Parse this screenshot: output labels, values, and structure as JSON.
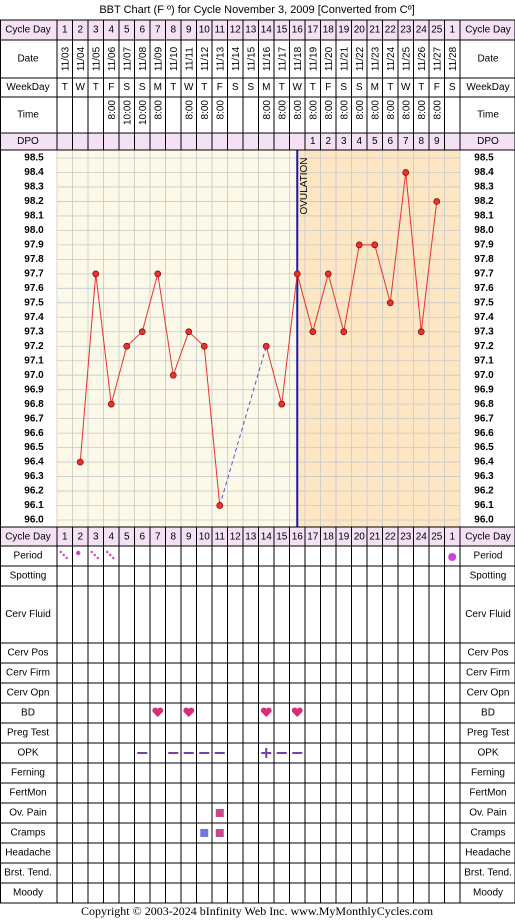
{
  "chart_data": {
    "type": "line",
    "title": "BBT Chart (F º) for Cycle November 3, 2009  [Converted from Cº]",
    "row_labels": {
      "cycle_day": "Cycle Day",
      "date": "Date",
      "weekday": "WeekDay",
      "time": "Time",
      "dpo": "DPO"
    },
    "categories": [
      1,
      2,
      3,
      4,
      5,
      6,
      7,
      8,
      9,
      10,
      11,
      12,
      13,
      14,
      15,
      16,
      17,
      18,
      19,
      20,
      21,
      22,
      23,
      24,
      25,
      1
    ],
    "dates": [
      "11/03",
      "11/04",
      "11/05",
      "11/06",
      "11/07",
      "11/08",
      "11/09",
      "11/10",
      "11/11",
      "11/12",
      "11/13",
      "11/14",
      "11/15",
      "11/16",
      "11/17",
      "11/18",
      "11/19",
      "11/20",
      "11/21",
      "11/22",
      "11/23",
      "11/24",
      "11/25",
      "11/26",
      "11/27",
      "11/28"
    ],
    "weekdays": [
      "T",
      "W",
      "T",
      "F",
      "S",
      "S",
      "M",
      "T",
      "W",
      "T",
      "F",
      "S",
      "S",
      "M",
      "T",
      "W",
      "T",
      "F",
      "S",
      "S",
      "M",
      "T",
      "W",
      "T",
      "F",
      "S"
    ],
    "times": [
      null,
      null,
      null,
      "8:00",
      "10:00",
      "10:00",
      "8:00",
      null,
      "8:00",
      "8:00",
      "8:00",
      null,
      null,
      "8:00",
      "8:00",
      "8:00",
      "8:00",
      "8:00",
      "8:00",
      "8:00",
      "8:00",
      "8:00",
      "8:00",
      "8:00",
      "8:00",
      null
    ],
    "dpo": [
      null,
      null,
      null,
      null,
      null,
      null,
      null,
      null,
      null,
      null,
      null,
      null,
      null,
      null,
      null,
      null,
      1,
      2,
      3,
      4,
      5,
      6,
      7,
      8,
      9,
      null
    ],
    "values": [
      null,
      96.4,
      97.7,
      96.8,
      97.2,
      97.3,
      97.7,
      97.0,
      97.3,
      97.2,
      96.1,
      null,
      null,
      97.2,
      96.8,
      97.7,
      97.3,
      97.7,
      97.3,
      97.9,
      97.9,
      97.5,
      98.4,
      97.3,
      98.2,
      null
    ],
    "color": "#e8322e",
    "ylim": [
      96.0,
      98.5
    ],
    "yticks": [
      {
        "value": 96.0,
        "label": "96.0"
      },
      96.1,
      96.2,
      96.3,
      96.4,
      96.5,
      96.6,
      96.7,
      96.8,
      96.9,
      {
        "value": 97.0,
        "label": "97.0"
      },
      97.1,
      97.2,
      97.3,
      97.4,
      97.5,
      97.6,
      97.7,
      97.8,
      97.9,
      {
        "value": 98.0,
        "label": "98.0"
      },
      98.1,
      98.2,
      98.3,
      98.4,
      98.5
    ],
    "grid": true,
    "ovulation_label": "OVULATION",
    "observation_rows": [
      "Period",
      "Spotting",
      "Cerv Fluid",
      "Cerv Pos",
      "Cerv Firm",
      "Cerv Opn",
      "BD",
      "Preg Test",
      "OPK",
      "Ferning",
      "FertMon",
      "Ov. Pain",
      "Cramps",
      "Headache",
      "Brst. Tend.",
      "Moody"
    ]
  },
  "footer": "Copyright © 2003-2024 bInfinity Web Inc.    www.MyMonthlyCycles.com"
}
